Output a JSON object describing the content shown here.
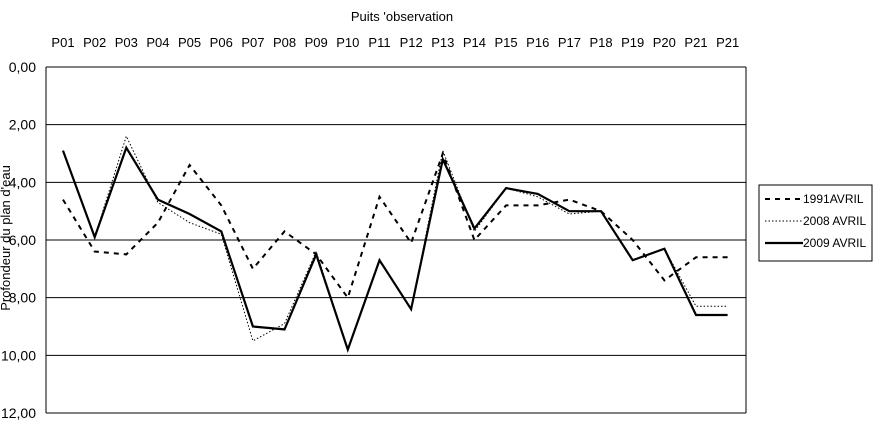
{
  "chart_data": {
    "type": "line",
    "title": "Puits 'observation",
    "xlabel": "Puits 'observation",
    "ylabel": "Profondeur du plan d'eau",
    "categories": [
      "P01",
      "P02",
      "P03",
      "P04",
      "P05",
      "P06",
      "P07",
      "P08",
      "P09",
      "P10",
      "P11",
      "P12",
      "P13",
      "P14",
      "P15",
      "P16",
      "P17",
      "P18",
      "P19",
      "P20",
      "P21",
      "P21"
    ],
    "ylim": [
      0,
      12
    ],
    "y_inverted": true,
    "x_axis_position": "top",
    "yticks": [
      "0,00",
      "2,00",
      "4,00",
      "6,00",
      "8,00",
      "10,00",
      "12,00"
    ],
    "grid": true,
    "legend_position": "right",
    "series": [
      {
        "name": "1991AVRIL",
        "style": "dashed",
        "color": "#000000",
        "values": [
          4.6,
          6.4,
          6.5,
          5.4,
          3.4,
          4.8,
          7.0,
          5.7,
          6.5,
          8.0,
          4.5,
          6.1,
          3.0,
          6.0,
          4.8,
          4.8,
          4.6,
          5.0,
          6.0,
          7.4,
          6.6,
          6.6
        ]
      },
      {
        "name": "2008 AVRIL",
        "style": "dotted",
        "color": "#000000",
        "values": [
          2.9,
          5.9,
          2.4,
          4.7,
          5.4,
          5.8,
          9.5,
          8.9,
          6.4,
          9.8,
          6.7,
          8.4,
          2.9,
          5.7,
          4.2,
          4.5,
          5.1,
          5.0,
          6.7,
          6.3,
          8.3,
          8.3
        ]
      },
      {
        "name": "2009 AVRIL",
        "style": "solid",
        "color": "#000000",
        "values": [
          2.9,
          5.9,
          2.8,
          4.6,
          5.1,
          5.7,
          9.0,
          9.1,
          6.5,
          9.8,
          6.7,
          8.4,
          3.2,
          5.6,
          4.2,
          4.4,
          5.0,
          5.0,
          6.7,
          6.3,
          8.6,
          8.6
        ]
      }
    ]
  }
}
